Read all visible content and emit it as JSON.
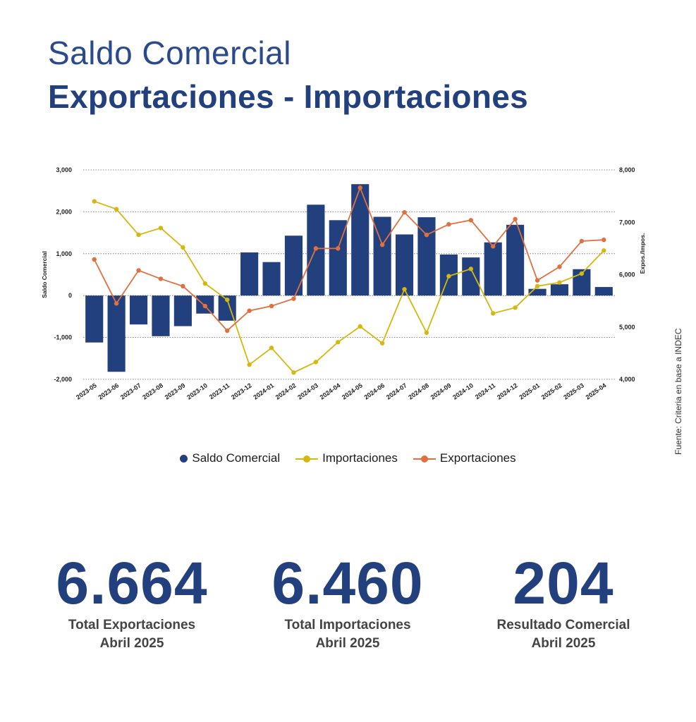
{
  "title_line1": "Saldo Comercial",
  "title_line2": "Exportaciones - Importaciones",
  "source": "Fuente: Criteria en base a INDEC",
  "colors": {
    "saldo": "#22407d",
    "importaciones": "#d6b70f",
    "exportaciones": "#e07040"
  },
  "legend": {
    "saldo": "Saldo Comercial",
    "importaciones": "Importaciones",
    "exportaciones": "Exportaciones"
  },
  "kpis": [
    {
      "value": "6.664",
      "label": "Total Exportaciones",
      "sublabel": "Abril 2025"
    },
    {
      "value": "6.460",
      "label": "Total Importaciones",
      "sublabel": "Abril 2025"
    },
    {
      "value": "204",
      "label": "Resultado Comercial",
      "sublabel": "Abril 2025"
    }
  ],
  "chart_data": {
    "type": "bar",
    "categories": [
      "2023-05",
      "2023-06",
      "2023-07",
      "2023-08",
      "2023-09",
      "2023-10",
      "2023-11",
      "2023-12",
      "2024-01",
      "2024-02",
      "2024-03",
      "2024-04",
      "2024-05",
      "2024-06",
      "2024-07",
      "2024-08",
      "2024-09",
      "2024-10",
      "2024-11",
      "2024-12",
      "2025-01",
      "2025-02",
      "2025-03",
      "2025-04"
    ],
    "ylabel": "Saldo Comercial",
    "y2label": "Expos./Impos.",
    "ylim": [
      -2000,
      3000
    ],
    "y2lim": [
      4000,
      8000
    ],
    "yticks": [
      "-2,000",
      "-1,000",
      "0",
      "1,000",
      "2,000",
      "3,000"
    ],
    "y2ticks": [
      "4,000",
      "5,000",
      "6,000",
      "7,000",
      "8,000"
    ],
    "grid": true,
    "series": [
      {
        "name": "Saldo Comercial",
        "kind": "bar",
        "axis": "left",
        "values": [
          -1120,
          -1820,
          -690,
          -970,
          -730,
          -430,
          -600,
          1030,
          800,
          1430,
          2170,
          1800,
          2660,
          1880,
          1460,
          1870,
          980,
          910,
          1270,
          1690,
          160,
          270,
          630,
          204
        ]
      },
      {
        "name": "Importaciones",
        "kind": "line",
        "axis": "right",
        "values": [
          7400,
          7250,
          6760,
          6890,
          6520,
          5830,
          5520,
          4280,
          4600,
          4130,
          4330,
          4710,
          5010,
          4690,
          5720,
          4890,
          5970,
          6110,
          5260,
          5370,
          5780,
          5850,
          6020,
          6460
        ]
      },
      {
        "name": "Exportaciones",
        "kind": "line",
        "axis": "right",
        "values": [
          6290,
          5450,
          6080,
          5920,
          5780,
          5400,
          4930,
          5310,
          5400,
          5540,
          6500,
          6500,
          7660,
          6570,
          7190,
          6760,
          6960,
          7040,
          6540,
          7060,
          5890,
          6150,
          6640,
          6664
        ]
      }
    ]
  }
}
